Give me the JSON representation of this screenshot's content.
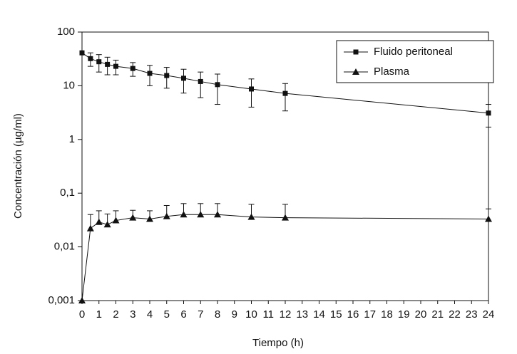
{
  "chart_data": {
    "type": "line",
    "x_label": "Tiempo (h)",
    "y_label": "Concentración (µg/ml)",
    "y_scale": "log",
    "xlim": [
      0,
      24
    ],
    "xticks": [
      0,
      1,
      2,
      3,
      4,
      5,
      6,
      7,
      8,
      9,
      10,
      11,
      12,
      13,
      14,
      15,
      16,
      17,
      18,
      19,
      20,
      21,
      22,
      23,
      24
    ],
    "ylim": [
      0.001,
      100
    ],
    "yticks": [
      {
        "value": 0.001,
        "label": "0,001"
      },
      {
        "value": 0.01,
        "label": "0,01"
      },
      {
        "value": 0.1,
        "label": "0,1"
      },
      1,
      10,
      100
    ],
    "legend": "top-right",
    "series": [
      {
        "name": "Fluido peritoneal",
        "color": "#111111",
        "marker": "square",
        "error_direction": "both",
        "x": [
          0,
          0.5,
          1,
          1.5,
          2,
          3,
          4,
          5,
          6,
          7,
          8,
          10,
          12,
          24
        ],
        "values": [
          41,
          32,
          28,
          25,
          23,
          21,
          17,
          15.5,
          13.8,
          12,
          10.5,
          8.7,
          7.2,
          3.1
        ],
        "errors": [
          0,
          9,
          10,
          9,
          7,
          6,
          7,
          6.5,
          6.5,
          6,
          6,
          4.7,
          3.8,
          1.4
        ]
      },
      {
        "name": "Plasma",
        "color": "#111111",
        "marker": "triangle",
        "error_direction": "up",
        "x": [
          0,
          0.5,
          1,
          1.5,
          2,
          3,
          4,
          5,
          6,
          7,
          8,
          10,
          12,
          24
        ],
        "values": [
          0.001,
          0.022,
          0.029,
          0.026,
          0.031,
          0.035,
          0.033,
          0.037,
          0.04,
          0.04,
          0.04,
          0.036,
          0.035,
          0.033
        ],
        "errors": [
          0,
          0.018,
          0.018,
          0.015,
          0.016,
          0.013,
          0.014,
          0.022,
          0.024,
          0.024,
          0.024,
          0.026,
          0.027,
          0.018
        ]
      }
    ]
  }
}
